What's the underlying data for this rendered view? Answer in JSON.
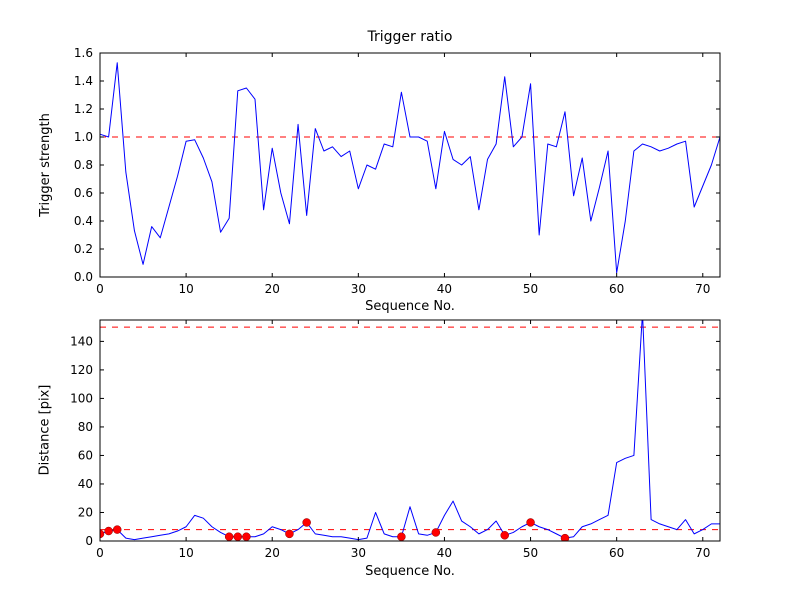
{
  "figure": {
    "background": "#ffffff",
    "line_color": "#0000ff",
    "threshold_color": "#ff0000",
    "marker_color": "#ff0000",
    "axis_color": "#000000"
  },
  "chart_data": [
    {
      "type": "line",
      "title": "Trigger ratio",
      "xlabel": "Sequence No.",
      "ylabel": "Trigger strength",
      "xlim": [
        0,
        72
      ],
      "ylim": [
        0,
        1.6
      ],
      "xticks": [
        0,
        10,
        20,
        30,
        40,
        50,
        60,
        70
      ],
      "ytick_labels": [
        "0.0",
        "0.2",
        "0.4",
        "0.6",
        "0.8",
        "1.0",
        "1.2",
        "1.4",
        "1.6"
      ],
      "grid": false,
      "legend": null,
      "threshold_lines": [
        {
          "y": 1.0,
          "color": "#ff0000",
          "style": "dashed"
        }
      ],
      "series": [
        {
          "name": "trigger-strength",
          "color": "#0000ff",
          "x_start": 0,
          "x_step": 1,
          "values": [
            1.02,
            1.0,
            1.53,
            0.75,
            0.33,
            0.09,
            0.36,
            0.28,
            0.5,
            0.72,
            0.97,
            0.98,
            0.85,
            0.68,
            0.32,
            0.42,
            1.33,
            1.35,
            1.27,
            0.48,
            0.92,
            0.6,
            0.38,
            1.09,
            0.44,
            1.06,
            0.9,
            0.93,
            0.86,
            0.9,
            0.63,
            0.8,
            0.77,
            0.95,
            0.93,
            1.32,
            1.0,
            1.0,
            0.97,
            0.63,
            1.04,
            0.84,
            0.8,
            0.86,
            0.48,
            0.84,
            0.95,
            1.43,
            0.93,
            1.0,
            1.38,
            0.3,
            0.95,
            0.93,
            1.18,
            0.58,
            0.85,
            0.4,
            0.64,
            0.9,
            0.03,
            0.4,
            0.9,
            0.95,
            0.93,
            0.9,
            0.92,
            0.95,
            0.97,
            0.5,
            0.65,
            0.8,
            1.0
          ]
        }
      ]
    },
    {
      "type": "line",
      "title": "",
      "xlabel": "Sequence No.",
      "ylabel": "Distance [pix]",
      "xlim": [
        0,
        72
      ],
      "ylim": [
        0,
        155
      ],
      "xticks": [
        0,
        10,
        20,
        30,
        40,
        50,
        60,
        70
      ],
      "ytick_labels": [
        "0",
        "20",
        "40",
        "60",
        "80",
        "100",
        "120",
        "140"
      ],
      "grid": false,
      "legend": null,
      "threshold_lines": [
        {
          "y": 150,
          "color": "#ff0000",
          "style": "dashed"
        },
        {
          "y": 8,
          "color": "#ff0000",
          "style": "dashed"
        }
      ],
      "series": [
        {
          "name": "distance",
          "color": "#0000ff",
          "x_start": 0,
          "x_step": 1,
          "values": [
            5,
            7,
            8,
            2,
            1,
            2,
            3,
            4,
            5,
            7,
            10,
            18,
            16,
            10,
            6,
            3,
            3,
            3,
            3,
            5,
            10,
            8,
            5,
            8,
            13,
            5,
            4,
            3,
            3,
            2,
            1,
            2,
            20,
            5,
            3,
            3,
            24,
            5,
            4,
            6,
            18,
            28,
            14,
            10,
            5,
            8,
            14,
            4,
            6,
            10,
            13,
            10,
            8,
            5,
            2,
            3,
            10,
            12,
            15,
            18,
            55,
            58,
            60,
            160,
            15,
            12,
            10,
            8,
            15,
            5,
            8,
            12,
            12
          ]
        }
      ],
      "markers": [
        {
          "name": "trigger-event-markers",
          "color": "#ff0000",
          "points": [
            [
              0,
              5
            ],
            [
              1,
              7
            ],
            [
              2,
              8
            ],
            [
              15,
              3
            ],
            [
              16,
              3
            ],
            [
              17,
              3
            ],
            [
              22,
              5
            ],
            [
              24,
              13
            ],
            [
              35,
              3
            ],
            [
              39,
              6
            ],
            [
              47,
              4
            ],
            [
              50,
              13
            ],
            [
              54,
              2
            ]
          ]
        }
      ]
    }
  ]
}
